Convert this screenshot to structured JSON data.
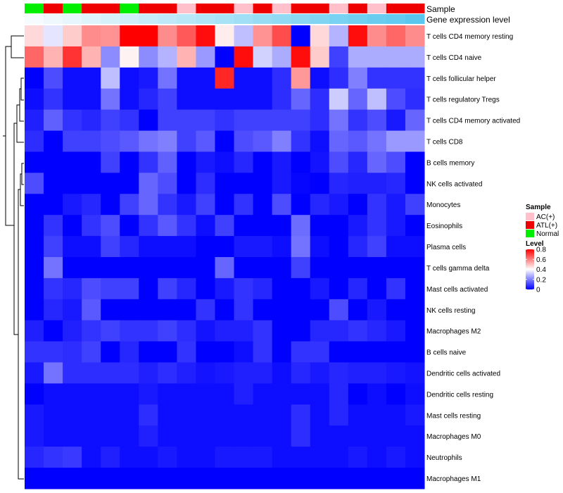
{
  "chart_data": {
    "type": "heatmap",
    "title": "",
    "annotation_titles": [
      "Sample",
      "Gene expression level"
    ],
    "sample_groups": [
      "Normal",
      "ATL(+)",
      "Normal",
      "ATL(+)",
      "ATL(+)",
      "Normal",
      "ATL(+)",
      "ATL(+)",
      "AC(+)",
      "ATL(+)",
      "ATL(+)",
      "AC(+)",
      "ATL(+)",
      "AC(+)",
      "ATL(+)",
      "ATL(+)",
      "AC(+)",
      "ATL(+)",
      "AC(+)",
      "ATL(+)",
      "ATL(+)"
    ],
    "gene_expression_level": [
      0.0,
      0.05,
      0.1,
      0.15,
      0.2,
      0.25,
      0.3,
      0.35,
      0.4,
      0.45,
      0.5,
      0.55,
      0.6,
      0.65,
      0.7,
      0.75,
      0.8,
      0.85,
      0.9,
      0.95,
      1.0
    ],
    "rows": [
      "T cells CD4 memory resting",
      "T cells CD4 naive",
      "T cells follicular helper",
      "T cells regulatory  Tregs",
      "T cells CD4 memory activated",
      "T cells CD8",
      "B cells memory",
      "NK cells activated",
      "Monocytes",
      "Eosinophils",
      "Plasma cells",
      "T cells gamma delta",
      "Mast cells activated",
      "NK cells resting",
      "Macrophages M2",
      "B cells naive",
      "Dendritic cells activated",
      "Dendritic cells resting",
      "Mast cells resting",
      "Macrophages M0",
      "Neutrophils",
      "Macrophages M1"
    ],
    "values": [
      [
        0.46,
        0.36,
        0.48,
        0.58,
        0.57,
        0.8,
        0.8,
        0.58,
        0.66,
        0.78,
        0.43,
        0.3,
        0.57,
        0.68,
        0.0,
        0.46,
        0.28,
        0.78,
        0.58,
        0.64,
        0.58
      ],
      [
        0.64,
        0.52,
        0.72,
        0.52,
        0.22,
        0.42,
        0.22,
        0.28,
        0.52,
        0.24,
        0.0,
        0.78,
        0.33,
        0.27,
        0.78,
        0.48,
        0.1,
        0.27,
        0.27,
        0.27,
        0.27
      ],
      [
        0.0,
        0.12,
        0.02,
        0.02,
        0.3,
        0.02,
        0.04,
        0.18,
        0.02,
        0.02,
        0.74,
        0.02,
        0.02,
        0.07,
        0.56,
        0.02,
        0.07,
        0.2,
        0.08,
        0.08,
        0.08
      ],
      [
        0.02,
        0.08,
        0.02,
        0.02,
        0.18,
        0.02,
        0.06,
        0.1,
        0.02,
        0.02,
        0.02,
        0.02,
        0.02,
        0.07,
        0.16,
        0.07,
        0.32,
        0.16,
        0.3,
        0.12,
        0.07
      ],
      [
        0.05,
        0.15,
        0.08,
        0.06,
        0.1,
        0.08,
        0.0,
        0.1,
        0.1,
        0.1,
        0.08,
        0.1,
        0.1,
        0.1,
        0.1,
        0.07,
        0.18,
        0.08,
        0.12,
        0.04,
        0.16
      ],
      [
        0.07,
        0.0,
        0.1,
        0.1,
        0.12,
        0.14,
        0.18,
        0.2,
        0.1,
        0.14,
        0.0,
        0.12,
        0.14,
        0.2,
        0.08,
        0.02,
        0.16,
        0.14,
        0.18,
        0.24,
        0.24
      ],
      [
        0.0,
        0.0,
        0.0,
        0.0,
        0.1,
        0.0,
        0.08,
        0.15,
        0.0,
        0.04,
        0.02,
        0.06,
        0.0,
        0.04,
        0.0,
        0.03,
        0.12,
        0.06,
        0.16,
        0.12,
        0.0
      ],
      [
        0.12,
        0.0,
        0.0,
        0.0,
        0.0,
        0.0,
        0.16,
        0.12,
        0.0,
        0.07,
        0.0,
        0.0,
        0.0,
        0.04,
        0.01,
        0.0,
        0.06,
        0.05,
        0.05,
        0.06,
        0.0
      ],
      [
        0.0,
        0.0,
        0.04,
        0.06,
        0.0,
        0.1,
        0.16,
        0.08,
        0.04,
        0.1,
        0.0,
        0.08,
        0.0,
        0.12,
        0.0,
        0.06,
        0.04,
        0.0,
        0.08,
        0.04,
        0.1
      ],
      [
        0.0,
        0.08,
        0.0,
        0.08,
        0.12,
        0.0,
        0.08,
        0.14,
        0.08,
        0.02,
        0.1,
        0.0,
        0.0,
        0.0,
        0.17,
        0.0,
        0.0,
        0.04,
        0.08,
        0.04,
        0.0
      ],
      [
        0.0,
        0.1,
        0.02,
        0.02,
        0.1,
        0.06,
        0.02,
        0.02,
        0.02,
        0.0,
        0.0,
        0.04,
        0.04,
        0.02,
        0.18,
        0.02,
        0.0,
        0.06,
        0.1,
        0.02,
        0.02
      ],
      [
        0.0,
        0.18,
        0.0,
        0.0,
        0.0,
        0.0,
        0.0,
        0.0,
        0.0,
        0.0,
        0.16,
        0.0,
        0.0,
        0.0,
        0.1,
        0.0,
        0.0,
        0.0,
        0.0,
        0.0,
        0.0
      ],
      [
        0.0,
        0.08,
        0.06,
        0.12,
        0.1,
        0.1,
        0.0,
        0.1,
        0.06,
        0.0,
        0.04,
        0.08,
        0.06,
        0.0,
        0.0,
        0.04,
        0.0,
        0.06,
        0.0,
        0.08,
        0.0
      ],
      [
        0.0,
        0.06,
        0.04,
        0.14,
        0.0,
        0.0,
        0.0,
        0.0,
        0.0,
        0.08,
        0.0,
        0.08,
        0.0,
        0.0,
        0.0,
        0.0,
        0.12,
        0.0,
        0.04,
        0.0,
        0.0
      ],
      [
        0.05,
        0.0,
        0.05,
        0.08,
        0.1,
        0.08,
        0.08,
        0.1,
        0.07,
        0.03,
        0.05,
        0.05,
        0.08,
        0.0,
        0.0,
        0.06,
        0.06,
        0.08,
        0.06,
        0.04,
        0.0
      ],
      [
        0.08,
        0.08,
        0.07,
        0.1,
        0.0,
        0.06,
        0.0,
        0.0,
        0.08,
        0.0,
        0.0,
        0.02,
        0.08,
        0.0,
        0.08,
        0.08,
        0.0,
        0.0,
        0.0,
        0.0,
        0.0
      ],
      [
        0.04,
        0.18,
        0.07,
        0.07,
        0.07,
        0.07,
        0.05,
        0.07,
        0.05,
        0.03,
        0.04,
        0.05,
        0.05,
        0.02,
        0.06,
        0.04,
        0.06,
        0.05,
        0.05,
        0.04,
        0.03
      ],
      [
        0.0,
        0.02,
        0.02,
        0.02,
        0.02,
        0.02,
        0.04,
        0.02,
        0.02,
        0.02,
        0.02,
        0.05,
        0.02,
        0.02,
        0.02,
        0.02,
        0.06,
        0.0,
        0.02,
        0.0,
        0.02
      ],
      [
        0.04,
        0.02,
        0.02,
        0.02,
        0.02,
        0.02,
        0.07,
        0.02,
        0.02,
        0.02,
        0.02,
        0.02,
        0.02,
        0.02,
        0.07,
        0.02,
        0.06,
        0.02,
        0.02,
        0.02,
        0.04
      ],
      [
        0.04,
        0.02,
        0.02,
        0.02,
        0.02,
        0.02,
        0.05,
        0.02,
        0.02,
        0.02,
        0.02,
        0.02,
        0.02,
        0.02,
        0.07,
        0.02,
        0.02,
        0.02,
        0.02,
        0.02,
        0.02
      ],
      [
        0.06,
        0.08,
        0.09,
        0.02,
        0.05,
        0.02,
        0.02,
        0.04,
        0.02,
        0.02,
        0.04,
        0.04,
        0.04,
        0.02,
        0.02,
        0.02,
        0.02,
        0.04,
        0.02,
        0.04,
        0.02
      ],
      [
        0.0,
        0.0,
        0.0,
        0.0,
        0.0,
        0.0,
        0.0,
        0.0,
        0.0,
        0.0,
        0.0,
        0.0,
        0.0,
        0.0,
        0.0,
        0.0,
        0.0,
        0.0,
        0.0,
        0.0,
        0.0
      ]
    ],
    "dendrogram": "rows",
    "legends": {
      "sample": {
        "title": "Sample",
        "entries": [
          {
            "label": "AC(+)",
            "color": "#ffc0cb"
          },
          {
            "label": "ATL(+)",
            "color": "#ee0000"
          },
          {
            "label": "Normal",
            "color": "#00ee00"
          }
        ]
      },
      "level": {
        "title": "Level",
        "ticks": [
          "0.8",
          "0.6",
          "0.4",
          "0.2",
          "0"
        ],
        "range": [
          0,
          0.8
        ]
      }
    },
    "colorscale": {
      "low": "#0000ff",
      "mid": "#ffffff",
      "high": "#ff0000",
      "mid_value": 0.4
    },
    "gene_expression_colors": {
      "low": "#f6fbfe",
      "high": "#5ac8ee"
    }
  }
}
